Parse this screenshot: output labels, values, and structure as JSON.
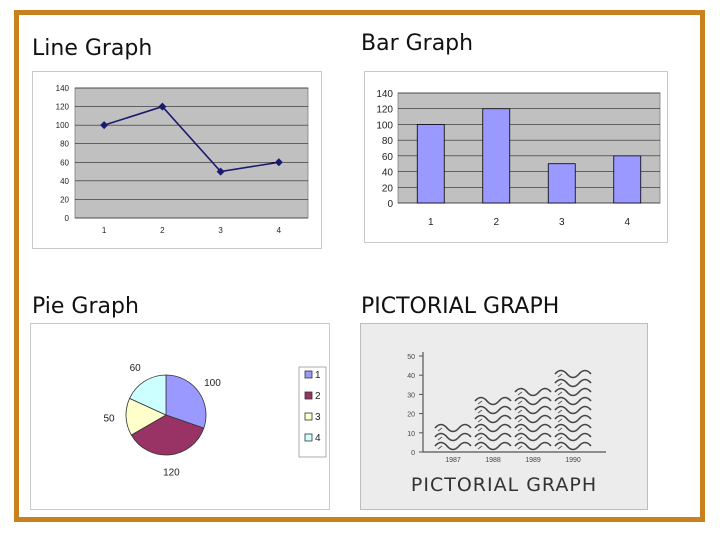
{
  "headings": {
    "line": "Line Graph",
    "bar": "Bar Graph",
    "pie": "Pie Graph",
    "pictorial": "PICTORIAL GRAPH"
  },
  "colors": {
    "frame": "#c8811c",
    "plot_bg": "#c0c0c0",
    "line_series": "#1a1a6e",
    "bar_fill": "#9999ff",
    "pie": [
      "#9999ff",
      "#993366",
      "#ffffcc",
      "#ccffff"
    ]
  },
  "chart_data": [
    {
      "type": "line",
      "categories": [
        "1",
        "2",
        "3",
        "4"
      ],
      "values": [
        100,
        120,
        50,
        60
      ],
      "ylim": [
        0,
        140
      ],
      "yticks": [
        0,
        20,
        40,
        60,
        80,
        100,
        120,
        140
      ],
      "grid": true
    },
    {
      "type": "bar",
      "categories": [
        "1",
        "2",
        "3",
        "4"
      ],
      "values": [
        100,
        120,
        50,
        60
      ],
      "ylim": [
        0,
        140
      ],
      "yticks": [
        0,
        20,
        40,
        60,
        80,
        100,
        120,
        140
      ],
      "grid": true
    },
    {
      "type": "pie",
      "labels": [
        "1",
        "2",
        "3",
        "4"
      ],
      "values": [
        100,
        120,
        50,
        60
      ],
      "data_labels": [
        "100",
        "120",
        "50",
        "60"
      ],
      "legend": "right"
    },
    {
      "type": "bar",
      "categories": [
        "1987",
        "1988",
        "1989",
        "1990"
      ],
      "values": [
        15,
        30,
        35,
        45
      ],
      "ylim": [
        0,
        50
      ],
      "yticks": [
        0,
        10,
        20,
        30,
        40,
        50
      ],
      "caption": "PICTORIAL GRAPH"
    }
  ]
}
